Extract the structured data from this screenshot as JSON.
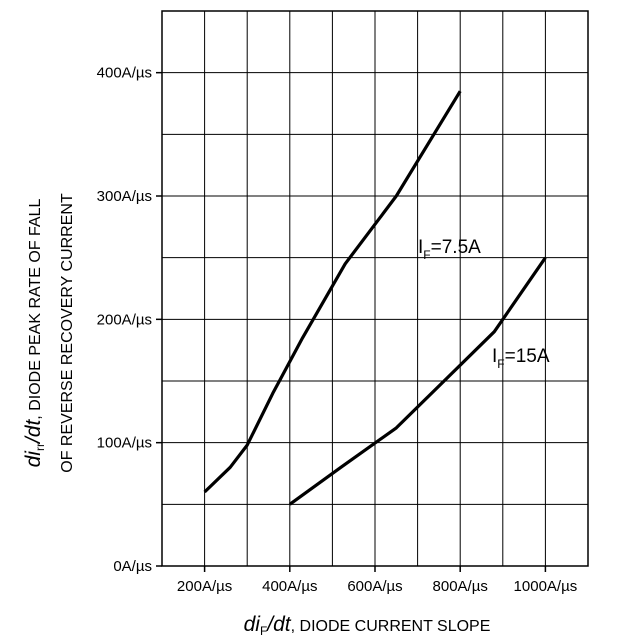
{
  "chart_data": {
    "type": "line",
    "x_ticks": [
      "200A/µs",
      "400A/µs",
      "600A/µs",
      "800A/µs",
      "1000A/µs"
    ],
    "y_ticks": [
      "0A/µs",
      "100A/µs",
      "200A/µs",
      "300A/µs",
      "400A/µs"
    ],
    "xlim": [
      100,
      1100
    ],
    "ylim": [
      0,
      450
    ],
    "x_tick_values": [
      200,
      400,
      600,
      800,
      1000
    ],
    "y_tick_values": [
      0,
      100,
      200,
      300,
      400
    ],
    "grid": true,
    "xlabel": {
      "symbol_main": "di",
      "symbol_sub": "F",
      "symbol_tail": "/dt",
      "text": ", DIODE CURRENT SLOPE"
    },
    "ylabel": {
      "symbol_main": "di",
      "symbol_sub": "rr",
      "symbol_tail": "/dt",
      "text": ", DIODE PEAK RATE OF FALL",
      "line2": "OF REVERSE RECOVERY CURRENT"
    },
    "series": [
      {
        "label_main": "I",
        "label_sub": "F",
        "label_tail": "=7.5A",
        "color": "#000000",
        "x": [
          200,
          260,
          300,
          360,
          430,
          530,
          650,
          800
        ],
        "y": [
          60,
          80,
          98,
          140,
          185,
          245,
          300,
          385
        ]
      },
      {
        "label_main": "I",
        "label_sub": "F",
        "label_tail": "=15A",
        "color": "#000000",
        "x": [
          400,
          520,
          650,
          880,
          1000
        ],
        "y": [
          50,
          80,
          112,
          190,
          250
        ]
      }
    ]
  }
}
